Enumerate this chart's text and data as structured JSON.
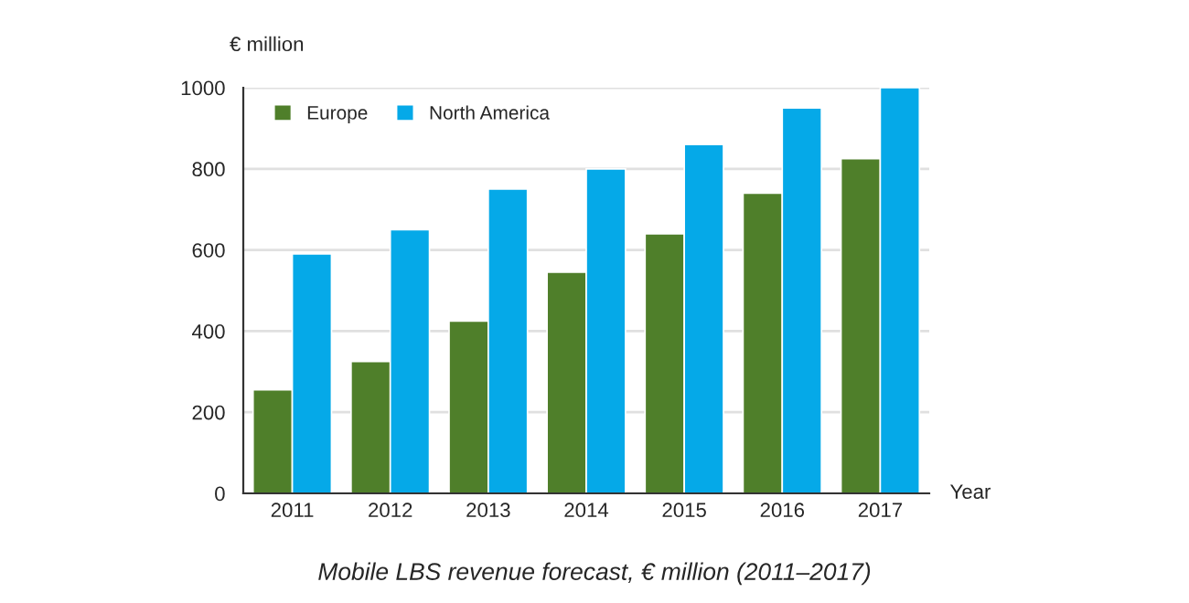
{
  "chart_data": {
    "type": "bar",
    "categories": [
      "2011",
      "2012",
      "2013",
      "2014",
      "2015",
      "2016",
      "2017"
    ],
    "series": [
      {
        "name": "Europe",
        "color": "#4f7f2a",
        "values": [
          255,
          325,
          425,
          545,
          640,
          740,
          825
        ]
      },
      {
        "name": "North America",
        "color": "#05a9e8",
        "values": [
          590,
          650,
          750,
          800,
          860,
          950,
          1000
        ]
      }
    ],
    "ylabel": "€ million",
    "xlabel": "Year",
    "ylim": [
      0,
      1000
    ],
    "yticks": [
      0,
      200,
      400,
      600,
      800,
      1000
    ],
    "grid": "y",
    "legend": "top left",
    "annotations": [
      "Mobile LBS revenue forecast, € million (2011–2017)"
    ]
  }
}
